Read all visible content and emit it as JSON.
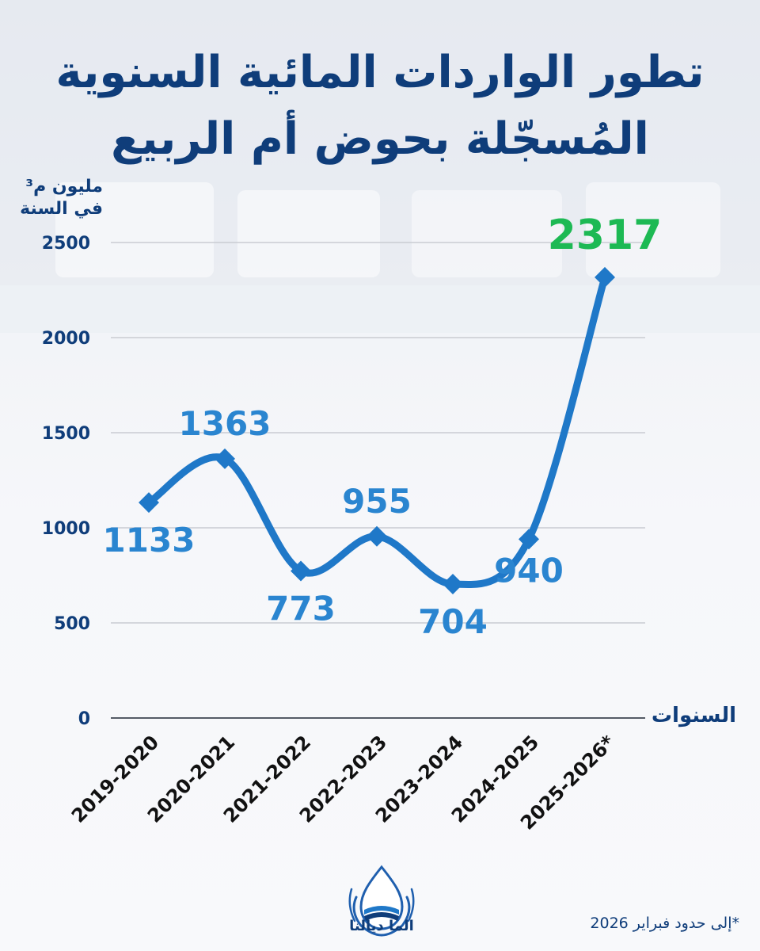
{
  "chart_data": {
    "type": "line",
    "title_lines": [
      "تطور الواردات المائية السنوية",
      "المُسجّلة بحوض أم الربيع"
    ],
    "ylabel_lines": [
      "مليون م³",
      "في السنة"
    ],
    "xlabel": "السنوات",
    "categories": [
      "2019-2020",
      "2020-2021",
      "2021-2022",
      "2022-2023",
      "2023-2024",
      "2024-2025",
      "2025-2026*"
    ],
    "values": [
      1133,
      1363,
      773,
      955,
      704,
      940,
      2317
    ],
    "value_labels": [
      "1133",
      "1363",
      "773",
      "955",
      "704",
      "940",
      "2317"
    ],
    "yticks": [
      "0",
      "500",
      "1000",
      "1500",
      "2000",
      "2500"
    ],
    "ylim": [
      0,
      2500
    ],
    "grid": true,
    "line_color": "#1f78c8",
    "label_color": "#2a85d0",
    "highlight_color": "#1db954"
  },
  "footnote": "*إلى حدود فبراير 2026",
  "logo": {
    "icon": "water-drop-hands-icon",
    "text": "الما ديالنا"
  }
}
